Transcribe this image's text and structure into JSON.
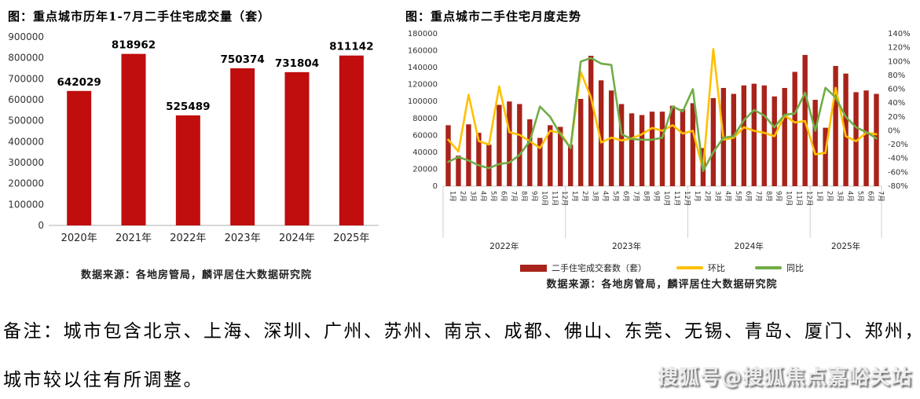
{
  "note": {
    "line1": "备注：城市包含北京、上海、深圳、广州、苏州、南京、成都、佛山、东莞、无锡、青岛、厦门、郑州，",
    "line2": "城市较以往有所调整。"
  },
  "watermark": {
    "text": "搜狐号@搜狐焦点嘉峪关站"
  },
  "chart_data": [
    {
      "type": "bar",
      "title": "图：重点城市历年1-7月二手住宅成交量（套）",
      "source": "数据来源：各地房管局，麟评居住大数据研究院",
      "categories": [
        "2020年",
        "2021年",
        "2022年",
        "2023年",
        "2024年",
        "2025年"
      ],
      "values": [
        642029,
        818962,
        525489,
        750374,
        731804,
        811142
      ],
      "bar_color": "#c00d0d",
      "ylabel": "",
      "xlabel": "",
      "ylim": [
        0,
        900000
      ],
      "ytick_step": 100000,
      "y_ticks": [
        "0",
        "100000",
        "200000",
        "300000",
        "400000",
        "500000",
        "600000",
        "700000",
        "800000",
        "900000"
      ],
      "grid": false,
      "data_labels": true
    },
    {
      "type": "bar+line",
      "title": "图：重点城市二手住宅月度走势",
      "source": "数据来源：各地房管局，麟评居住大数据研究院",
      "x_labels": [
        "1月",
        "2月",
        "3月",
        "4月",
        "5月",
        "6月",
        "7月",
        "8月",
        "9月",
        "10月",
        "11月",
        "12月",
        "1月",
        "2月",
        "3月",
        "4月",
        "5月",
        "6月",
        "7月",
        "8月",
        "9月",
        "10月",
        "11月",
        "12月",
        "1月",
        "2月",
        "3月",
        "4月",
        "5月",
        "6月",
        "7月",
        "8月",
        "9月",
        "10月",
        "11月",
        "12月",
        "1月",
        "2月",
        "3月",
        "4月",
        "5月",
        "6月",
        "7月"
      ],
      "year_groups": [
        {
          "label": "2022年",
          "months": 12
        },
        {
          "label": "2023年",
          "months": 12
        },
        {
          "label": "2024年",
          "months": 12
        },
        {
          "label": "2025年",
          "months": 7
        }
      ],
      "left_axis": {
        "min": 0,
        "max": 180000,
        "step": 20000,
        "ticks": [
          "0",
          "20000",
          "40000",
          "60000",
          "80000",
          "100000",
          "120000",
          "140000",
          "160000",
          "180000"
        ]
      },
      "right_axis": {
        "min": -80,
        "max": 140,
        "step": 20,
        "suffix": "%",
        "ticks": [
          "-80%",
          "-60%",
          "-40%",
          "-20%",
          "0%",
          "20%",
          "40%",
          "60%",
          "80%",
          "100%",
          "120%",
          "140%"
        ]
      },
      "grid": false,
      "legend_position": "bottom",
      "series": [
        {
          "name": "二手住宅成交套数（套）",
          "type": "bar",
          "axis": "left",
          "color": "#a8231a",
          "values": [
            72000,
            36000,
            73000,
            63000,
            49000,
            96000,
            100000,
            97000,
            79000,
            57000,
            72000,
            70000,
            49000,
            103000,
            154000,
            125000,
            113000,
            97000,
            86000,
            84000,
            88000,
            88000,
            95000,
            91000,
            98000,
            45000,
            104000,
            116000,
            109000,
            119000,
            121000,
            119000,
            106000,
            116000,
            135000,
            155000,
            102000,
            69000,
            142000,
            133000,
            111000,
            113000,
            109000
          ]
        },
        {
          "name": "环比",
          "type": "line",
          "axis": "right",
          "color": "#ffc000",
          "values": [
            -13,
            -30,
            52,
            -15,
            -20,
            64,
            -2,
            -6,
            -15,
            -25,
            0,
            -3,
            -25,
            85,
            48,
            -17,
            -10,
            -14,
            -11,
            -5,
            4,
            0,
            8,
            -4,
            0,
            -56,
            118,
            -13,
            -10,
            5,
            0,
            -3,
            -8,
            22,
            12,
            14,
            -34,
            -32,
            62,
            -8,
            -15,
            -3,
            -5
          ]
        },
        {
          "name": "同比",
          "type": "line",
          "axis": "right",
          "color": "#70ad47",
          "values": [
            -45,
            -38,
            -43,
            -50,
            -54,
            -48,
            -46,
            -35,
            -15,
            35,
            20,
            -5,
            -25,
            100,
            105,
            97,
            95,
            -5,
            -12,
            -13,
            -13,
            -10,
            35,
            28,
            60,
            -58,
            -31,
            -10,
            -8,
            15,
            30,
            22,
            5,
            23,
            25,
            55,
            0,
            62,
            48,
            20,
            5,
            -2,
            -11
          ]
        }
      ]
    }
  ]
}
